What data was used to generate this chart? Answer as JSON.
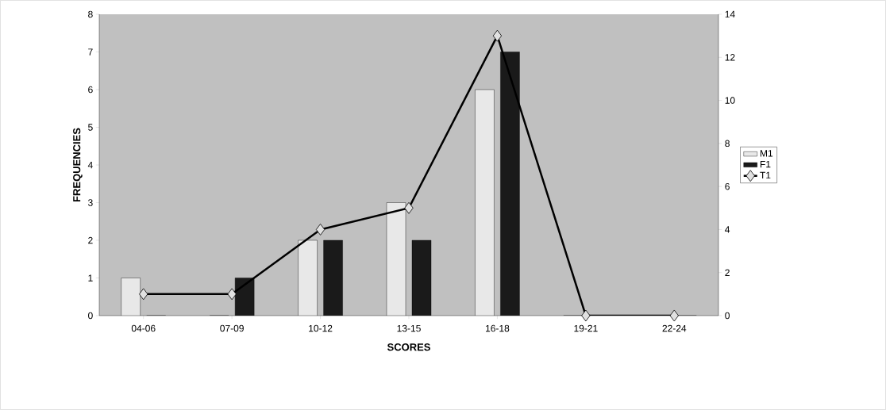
{
  "chart_data": {
    "type": "bar",
    "xlabel": "SCORES",
    "ylabel": "FREQUENCIES",
    "categories": [
      "04-06",
      "07-09",
      "10-12",
      "13-15",
      "16-18",
      "19-21",
      "22-24"
    ],
    "series": [
      {
        "name": "M1",
        "color": "#e8e8e8",
        "values": [
          1,
          0,
          2,
          3,
          6,
          0,
          0
        ]
      },
      {
        "name": "F1",
        "color": "#1a1a1a",
        "values": [
          0,
          1,
          2,
          2,
          7,
          0,
          0
        ]
      },
      {
        "name": "T1",
        "type": "line",
        "axis": "y2",
        "color": "#000000",
        "marker": "diamond",
        "line_style": "solid",
        "values": [
          1,
          1,
          4,
          5,
          13,
          0,
          0
        ]
      }
    ],
    "ylim": [
      0,
      8
    ],
    "yticks": [
      0,
      1,
      2,
      3,
      4,
      5,
      6,
      7,
      8
    ],
    "y2lim": [
      0,
      14
    ],
    "y2ticks": [
      0,
      2,
      4,
      6,
      8,
      10,
      12,
      14
    ],
    "grid": false,
    "legend": "right"
  }
}
